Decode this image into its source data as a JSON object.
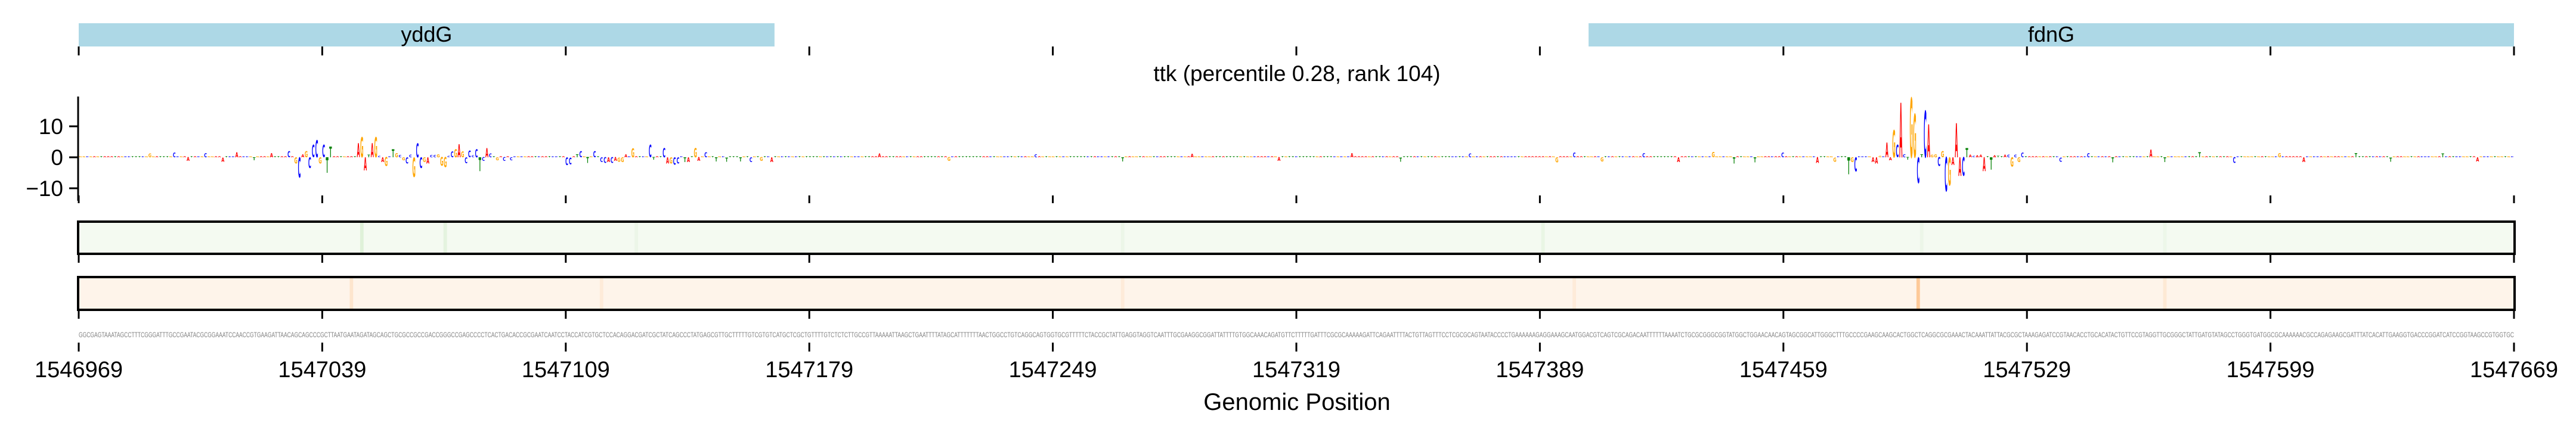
{
  "chart_data": {
    "type": "sequence-logo",
    "title": "ttk (percentile 0.28, rank 104)",
    "xlabel": "Genomic Position",
    "xlim": [
      1546969,
      1547669
    ],
    "x_ticks": [
      "1546969",
      "1547039",
      "1547109",
      "1547179",
      "1547249",
      "1547319",
      "1547389",
      "1547459",
      "1547529",
      "1547599",
      "1547669"
    ],
    "ylim": [
      -11.5,
      19.5
    ],
    "y_ticks": [
      {
        "value": 10,
        "label": "10"
      },
      {
        "value": 0,
        "label": "0"
      },
      {
        "value": -10,
        "label": "−10"
      }
    ],
    "genes": [
      {
        "name": "yddG",
        "start": 1546969,
        "end": 1547169
      },
      {
        "name": "fdnG",
        "start": 1547403,
        "end": 1547669
      }
    ],
    "letter_colors": {
      "A": "#ff0000",
      "C": "#0000ff",
      "G": "#ffa500",
      "T": "#008000"
    },
    "gene_color": "#add8e6",
    "sequence": "GGCGAGTAAATAGCCTTTCGGGATTTGCCGAATACGCGGAAATCCAACCGTGAAGATTAACAGCAGCCCGCTTAATGAATAGATAGCAGCTGCGCCGCCGACCGGGCCGAGCCCCTCACTGACACCGCGAATCAATCCTACCATCGTGCTCCACAGGACGATCGCTATCAGCCCTATGAGCGTTGCTTTTTGTCGTGTCATGCTCGCTGTTTTGTCTCTCTTGCCGTTAAAAATTAAGCTGAATTTTATAGCATTTTTTTAACTGGCCTGTCAGGCAGTGGTGCGTTTTTCTACCGCTATTGAGGTAGGTCAATTTGCGAAGGCGGATTATTTTGTGGCAAACAGATGTTCTTTTTGATTTCGCGCAAAAAGATTCAGAATTTTACTGTTAGTTTCCTCGCGCAGTAATACCCCTGAAAAAAGAGGAAAGCAATGGACGTCAGTCGCAGACAATTTTTTAAAATCTGCGCGGGCGGTATGGCTGGAACAACAGTAGCGGCATTGGGCTTTGCCCCGAAGCAAGCACTGGCTCAGGCGCGAAACTACAAATTATTACGCGCTAAAGAGATCCGTAACACCTGCACATACTGTTCCGTAGGTTGCGGGCTATTGATGTATAGCCTGGGTGATGGCGCAAAAAACGCCAGAGAAGCGATTTATCACATTGAAGGTGACCCGGATCATCCGGTAAGCCGTGGTGC",
    "default_attribution": 0.4,
    "attribution": [
      [
        20,
        1.2
      ],
      [
        27,
        1.5
      ],
      [
        31,
        -1.2
      ],
      [
        36,
        1.3
      ],
      [
        41,
        -1.4
      ],
      [
        45,
        1.6
      ],
      [
        50,
        -1
      ],
      [
        55,
        1.4
      ],
      [
        60,
        2
      ],
      [
        62,
        -2
      ],
      [
        63,
        -6.5
      ],
      [
        64,
        1
      ],
      [
        65,
        2
      ],
      [
        66,
        -3.5
      ],
      [
        67,
        4
      ],
      [
        68,
        5.5
      ],
      [
        69,
        -2
      ],
      [
        70,
        4
      ],
      [
        71,
        -5
      ],
      [
        72,
        3.5
      ],
      [
        80,
        4.5
      ],
      [
        81,
        6.5
      ],
      [
        82,
        -4.2
      ],
      [
        83,
        0.8
      ],
      [
        84,
        4.5
      ],
      [
        85,
        6.5
      ],
      [
        86,
        0.5
      ],
      [
        87,
        -1.5
      ],
      [
        88,
        -2.8
      ],
      [
        90,
        2.6
      ],
      [
        91,
        1.3
      ],
      [
        92,
        0.7
      ],
      [
        93,
        -1
      ],
      [
        94,
        -2
      ],
      [
        95,
        0.8
      ],
      [
        96,
        -6.3
      ],
      [
        97,
        4.5
      ],
      [
        98,
        -3.5
      ],
      [
        99,
        -1.5
      ],
      [
        100,
        -2
      ],
      [
        101,
        0.7
      ],
      [
        102,
        0.7
      ],
      [
        103,
        1
      ],
      [
        104,
        -2.7
      ],
      [
        105,
        -3.2
      ],
      [
        106,
        0.5
      ],
      [
        107,
        1.8
      ],
      [
        108,
        2.6
      ],
      [
        109,
        4.3
      ],
      [
        110,
        1.8
      ],
      [
        111,
        -1.9
      ],
      [
        112,
        2.3
      ],
      [
        113,
        0.6
      ],
      [
        114,
        2.6
      ],
      [
        115,
        -4.5
      ],
      [
        116,
        -1.2
      ],
      [
        117,
        3
      ],
      [
        118,
        1.2
      ],
      [
        120,
        -1
      ],
      [
        122,
        -1.2
      ],
      [
        124,
        -1
      ],
      [
        140,
        -2.5
      ],
      [
        141,
        -2.3
      ],
      [
        143,
        1
      ],
      [
        144,
        2
      ],
      [
        146,
        -1.8
      ],
      [
        148,
        2
      ],
      [
        150,
        -1.5
      ],
      [
        151,
        -1.8
      ],
      [
        152,
        -1.5
      ],
      [
        153,
        -1.8
      ],
      [
        154,
        -1.2
      ],
      [
        155,
        -1.4
      ],
      [
        156,
        -1.5
      ],
      [
        157,
        1
      ],
      [
        159,
        2.8
      ],
      [
        164,
        4
      ],
      [
        165,
        -0.8
      ],
      [
        168,
        3
      ],
      [
        169,
        -2
      ],
      [
        170,
        -2
      ],
      [
        171,
        -2.4
      ],
      [
        172,
        -2
      ],
      [
        174,
        -1.5
      ],
      [
        175,
        -1.5
      ],
      [
        177,
        3
      ],
      [
        178,
        -1.2
      ],
      [
        180,
        1.6
      ],
      [
        183,
        -1.3
      ],
      [
        186,
        -1.4
      ],
      [
        190,
        -1.3
      ],
      [
        193,
        -1.5
      ],
      [
        196,
        -1.2
      ],
      [
        199,
        -1.5
      ],
      [
        230,
        1.2
      ],
      [
        250,
        -1.2
      ],
      [
        275,
        1
      ],
      [
        300,
        -1.3
      ],
      [
        320,
        1.1
      ],
      [
        345,
        -1.2
      ],
      [
        366,
        1.3
      ],
      [
        380,
        -1.4
      ],
      [
        400,
        1.2
      ],
      [
        425,
        -1.6
      ],
      [
        430,
        1.5
      ],
      [
        438,
        -1.3
      ],
      [
        450,
        1.4
      ],
      [
        460,
        -1.5
      ],
      [
        470,
        1.7
      ],
      [
        476,
        -2
      ],
      [
        482,
        -1.6
      ],
      [
        490,
        1.5
      ],
      [
        500,
        -1.8
      ],
      [
        505,
        -1.4
      ],
      [
        509,
        -5.5
      ],
      [
        510,
        -1.5
      ],
      [
        511,
        -4.5
      ],
      [
        516,
        -1.5
      ],
      [
        517,
        -2
      ],
      [
        518,
        0.5
      ],
      [
        520,
        4.8
      ],
      [
        521,
        -1
      ],
      [
        522,
        8.7
      ],
      [
        523,
        4
      ],
      [
        524,
        17.6
      ],
      [
        525,
        1
      ],
      [
        526,
        -0.8
      ],
      [
        527,
        19.2
      ],
      [
        528,
        14
      ],
      [
        529,
        -8.3
      ],
      [
        530,
        1
      ],
      [
        531,
        15
      ],
      [
        532,
        10.6
      ],
      [
        533,
        0.8
      ],
      [
        534,
        1
      ],
      [
        535,
        -2.8
      ],
      [
        536,
        2
      ],
      [
        537,
        -11
      ],
      [
        538,
        -9
      ],
      [
        539,
        -2.5
      ],
      [
        540,
        11
      ],
      [
        541,
        -6
      ],
      [
        542,
        -6
      ],
      [
        543,
        3
      ],
      [
        544,
        0.8
      ],
      [
        545,
        0.5
      ],
      [
        546,
        0.6
      ],
      [
        547,
        0.8
      ],
      [
        548,
        -4.5
      ],
      [
        550,
        -4
      ],
      [
        551,
        0.6
      ],
      [
        552,
        0.5
      ],
      [
        554,
        0.8
      ],
      [
        555,
        0.8
      ],
      [
        556,
        -3
      ],
      [
        557,
        0.8
      ],
      [
        558,
        -1.5
      ],
      [
        559,
        1.5
      ],
      [
        570,
        -1.4
      ],
      [
        578,
        1.3
      ],
      [
        585,
        -1.6
      ],
      [
        596,
        2.5
      ],
      [
        600,
        -1.5
      ],
      [
        610,
        1.6
      ],
      [
        620,
        -1.8
      ],
      [
        633,
        1.4
      ],
      [
        640,
        -1.5
      ],
      [
        655,
        1.3
      ],
      [
        665,
        -1.4
      ],
      [
        680,
        1.2
      ],
      [
        690,
        -1.3
      ]
    ],
    "tracks": [
      {
        "name": "green-track",
        "base_color": "#f4faf1",
        "stripe_color": "#d9efd3",
        "stripes": [
          [
            81,
            0.8
          ],
          [
            105,
            0.6
          ],
          [
            160,
            0.3
          ],
          [
            300,
            0.3
          ],
          [
            421,
            0.4
          ],
          [
            530,
            0.3
          ],
          [
            600,
            0.25
          ]
        ]
      },
      {
        "name": "orange-track",
        "base_color": "#fef4ea",
        "stripe_color": "#fdc998",
        "stripes": [
          [
            78,
            0.35
          ],
          [
            150,
            0.2
          ],
          [
            300,
            0.2
          ],
          [
            430,
            0.2
          ],
          [
            529,
            1.0
          ],
          [
            600,
            0.25
          ]
        ]
      }
    ]
  }
}
